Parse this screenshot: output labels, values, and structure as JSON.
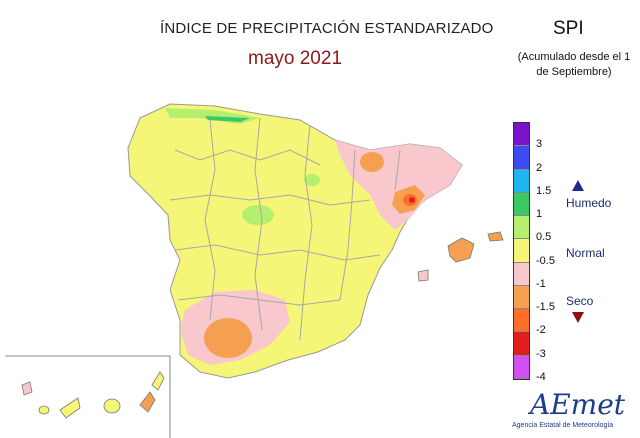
{
  "title": "ÍNDICE DE PRECIPITACIÓN ESTANDARIZADO",
  "subtitle": "mayo 2021",
  "index_name": "SPI",
  "note": "(Acumulado desde el 1 de Septiembre)",
  "legend": {
    "labels": [
      "3",
      "2",
      "1.5",
      "1",
      "0.5",
      "-0.5",
      "-1",
      "-1.5",
      "-2",
      "-3",
      "-4"
    ],
    "colors": [
      "#7b14c8",
      "#3c4cf0",
      "#20b4f0",
      "#3cc864",
      "#b4f06e",
      "#f5f578",
      "#f8c8cc",
      "#f5a050",
      "#ff6e28",
      "#e01e1e",
      "#d250f0"
    ],
    "humid_label": "Humedo",
    "normal_label": "Normal",
    "dry_label": "Seco",
    "humid_color": "#1c2b8c",
    "dry_color": "#8b1010"
  },
  "logo": {
    "text": "AEmet",
    "subtext": "Agencia Estatal de Meteorología"
  }
}
